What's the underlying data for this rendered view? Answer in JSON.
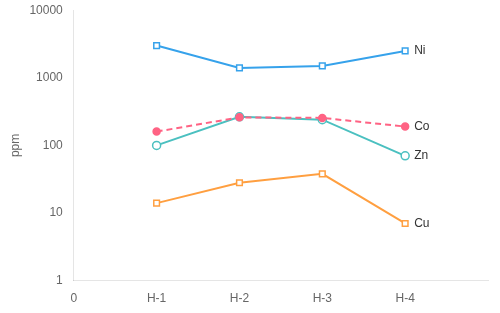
{
  "chart_data": {
    "type": "line",
    "x": [
      1,
      2,
      3,
      4
    ],
    "xlim": [
      0,
      5
    ],
    "xticks": [
      0,
      {
        "value": 1,
        "label": "H-1"
      },
      {
        "value": 2,
        "label": "H-2"
      },
      {
        "value": 3,
        "label": "H-3"
      },
      {
        "value": 4,
        "label": "H-4"
      }
    ],
    "ylabel": "ppm",
    "log": "y",
    "ylim": [
      1,
      10000
    ],
    "yticks": [
      1,
      10,
      100,
      1000,
      10000
    ],
    "grid": false,
    "series": [
      {
        "name": "Ni",
        "values": [
          3000,
          1400,
          1500,
          2500
        ],
        "line_style": "solid",
        "marker": "square"
      },
      {
        "name": "Co",
        "values": [
          160,
          260,
          255,
          190
        ],
        "line_style": "dashed",
        "marker": "dot"
      },
      {
        "name": "Zn",
        "values": [
          100,
          265,
          240,
          70
        ],
        "line_style": "solid",
        "marker": "circle"
      },
      {
        "name": "Cu",
        "values": [
          14,
          28,
          38,
          7
        ],
        "line_style": "solid",
        "marker": "square"
      }
    ]
  }
}
